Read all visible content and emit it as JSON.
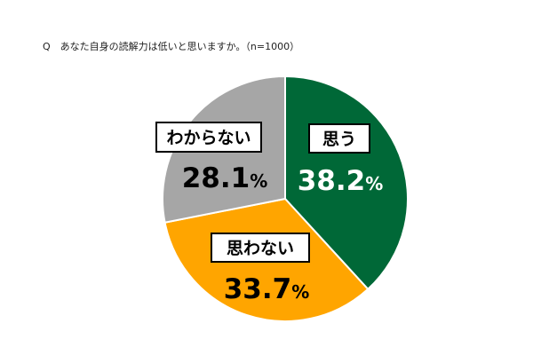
{
  "chart_data": {
    "type": "pie",
    "title": "Q　あなた自身の読解力は低いと思いますか。（n=1000）",
    "unit": "%",
    "slices": [
      {
        "label": "思う",
        "value": 38.2,
        "value_text": "38.2",
        "color": "#006837"
      },
      {
        "label": "思わない",
        "value": 33.7,
        "value_text": "33.7",
        "color": "#FFA500"
      },
      {
        "label": "わからない",
        "value": 28.1,
        "value_text": "28.1",
        "color": "#A6A6A6"
      }
    ],
    "start_angle": "12 o'clock",
    "direction": "clockwise",
    "edge_color": "#ffffff"
  }
}
